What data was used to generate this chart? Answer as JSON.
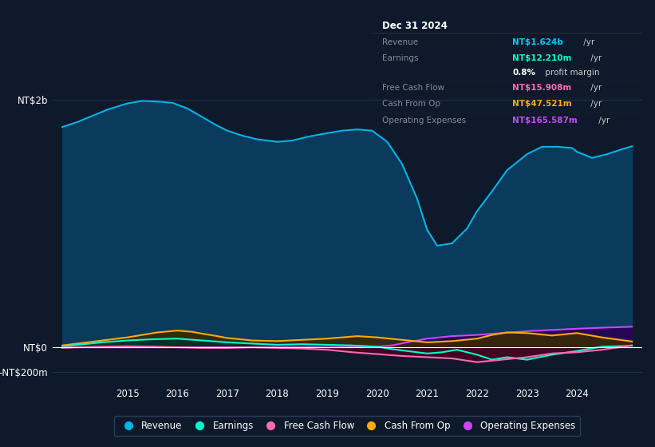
{
  "bg_color": "#0e1a2b",
  "plot_bg_color": "#0e1a2b",
  "grid_color": "#1e3050",
  "title_box": {
    "date": "Dec 31 2024",
    "rows": [
      {
        "label": "Revenue",
        "value": "NT$1.624b",
        "suffix": " /yr",
        "value_color": "#00c8ff",
        "bold": true
      },
      {
        "label": "Earnings",
        "value": "NT$12.210m",
        "suffix": " /yr",
        "value_color": "#00ffcc",
        "bold": true
      },
      {
        "label": "",
        "value": "0.8%",
        "suffix": " profit margin",
        "value_color": "#ffffff",
        "bold": true
      },
      {
        "label": "Free Cash Flow",
        "value": "NT$15.908m",
        "suffix": " /yr",
        "value_color": "#ff69b4",
        "bold": true
      },
      {
        "label": "Cash From Op",
        "value": "NT$47.521m",
        "suffix": " /yr",
        "value_color": "#ffaa00",
        "bold": true
      },
      {
        "label": "Operating Expenses",
        "value": "NT$165.587m",
        "suffix": " /yr",
        "value_color": "#cc44ff",
        "bold": true
      }
    ]
  },
  "ytick_labels": [
    "NT$2b",
    "NT$0",
    "-NT$200m"
  ],
  "ytick_values": [
    2000,
    0,
    -200
  ],
  "ylim": [
    -300,
    2300
  ],
  "xlim": [
    2013.5,
    2025.3
  ],
  "xticks": [
    2015,
    2016,
    2017,
    2018,
    2019,
    2020,
    2021,
    2022,
    2023,
    2024
  ],
  "series": {
    "revenue": {
      "color": "#00b4e6",
      "fill_color": "#0a3a5c",
      "label": "Revenue",
      "x": [
        2013.7,
        2014.0,
        2014.3,
        2014.6,
        2015.0,
        2015.3,
        2015.6,
        2015.9,
        2016.0,
        2016.2,
        2016.5,
        2016.8,
        2017.0,
        2017.3,
        2017.6,
        2018.0,
        2018.3,
        2018.6,
        2019.0,
        2019.3,
        2019.6,
        2019.9,
        2020.0,
        2020.2,
        2020.5,
        2020.8,
        2021.0,
        2021.2,
        2021.5,
        2021.8,
        2022.0,
        2022.3,
        2022.6,
        2023.0,
        2023.3,
        2023.6,
        2023.9,
        2024.0,
        2024.3,
        2024.6,
        2024.9,
        2025.1
      ],
      "y": [
        1780,
        1820,
        1870,
        1920,
        1970,
        1990,
        1985,
        1975,
        1960,
        1930,
        1860,
        1790,
        1750,
        1710,
        1680,
        1660,
        1670,
        1700,
        1730,
        1750,
        1760,
        1750,
        1720,
        1660,
        1480,
        1200,
        950,
        820,
        840,
        960,
        1100,
        1260,
        1430,
        1560,
        1620,
        1620,
        1610,
        1580,
        1530,
        1560,
        1600,
        1624
      ]
    },
    "earnings": {
      "color": "#00ffcc",
      "fill_color": "#00332a",
      "label": "Earnings",
      "x": [
        2013.7,
        2014.0,
        2014.5,
        2015.0,
        2015.5,
        2016.0,
        2016.5,
        2017.0,
        2017.5,
        2018.0,
        2018.5,
        2019.0,
        2019.5,
        2020.0,
        2020.3,
        2020.6,
        2021.0,
        2021.3,
        2021.6,
        2022.0,
        2022.3,
        2022.6,
        2023.0,
        2023.5,
        2024.0,
        2024.5,
        2025.1
      ],
      "y": [
        10,
        20,
        40,
        55,
        65,
        70,
        55,
        40,
        30,
        20,
        25,
        20,
        15,
        5,
        -15,
        -30,
        -50,
        -40,
        -20,
        -60,
        -100,
        -80,
        -100,
        -60,
        -30,
        5,
        12
      ]
    },
    "free_cash_flow": {
      "color": "#ff69b4",
      "fill_color": "#4a0020",
      "label": "Free Cash Flow",
      "x": [
        2013.7,
        2014.0,
        2014.5,
        2015.0,
        2015.5,
        2016.0,
        2016.5,
        2017.0,
        2017.5,
        2018.0,
        2018.5,
        2019.0,
        2019.5,
        2020.0,
        2020.5,
        2021.0,
        2021.5,
        2022.0,
        2022.5,
        2023.0,
        2023.5,
        2024.0,
        2024.5,
        2025.1
      ],
      "y": [
        -5,
        0,
        5,
        8,
        5,
        0,
        -5,
        -5,
        0,
        -5,
        -10,
        -20,
        -40,
        -55,
        -70,
        -80,
        -90,
        -120,
        -100,
        -80,
        -50,
        -40,
        -20,
        16
      ]
    },
    "cash_from_op": {
      "color": "#ffaa00",
      "fill_color": "#3a2a00",
      "label": "Cash From Op",
      "x": [
        2013.7,
        2014.0,
        2014.5,
        2015.0,
        2015.3,
        2015.6,
        2016.0,
        2016.3,
        2016.5,
        2016.8,
        2017.0,
        2017.5,
        2018.0,
        2018.5,
        2019.0,
        2019.3,
        2019.6,
        2020.0,
        2020.5,
        2021.0,
        2021.5,
        2022.0,
        2022.3,
        2022.6,
        2023.0,
        2023.5,
        2024.0,
        2024.5,
        2025.1
      ],
      "y": [
        15,
        30,
        55,
        80,
        100,
        120,
        135,
        125,
        110,
        90,
        75,
        55,
        50,
        60,
        70,
        80,
        90,
        80,
        60,
        40,
        50,
        70,
        100,
        120,
        115,
        95,
        115,
        80,
        47
      ]
    },
    "operating_expenses": {
      "color": "#cc44ff",
      "fill_color": "#2a0055",
      "label": "Operating Expenses",
      "x": [
        2013.7,
        2014.0,
        2014.5,
        2015.0,
        2015.5,
        2016.0,
        2016.5,
        2017.0,
        2017.5,
        2018.0,
        2018.5,
        2019.0,
        2019.5,
        2020.0,
        2020.3,
        2020.6,
        2021.0,
        2021.5,
        2022.0,
        2022.5,
        2023.0,
        2023.5,
        2024.0,
        2024.5,
        2025.1
      ],
      "y": [
        0,
        0,
        0,
        0,
        0,
        0,
        0,
        0,
        0,
        0,
        0,
        0,
        0,
        5,
        15,
        40,
        70,
        90,
        100,
        115,
        130,
        140,
        150,
        158,
        166
      ]
    }
  },
  "legend_items": [
    {
      "label": "Revenue",
      "color": "#00b4e6"
    },
    {
      "label": "Earnings",
      "color": "#00ffcc"
    },
    {
      "label": "Free Cash Flow",
      "color": "#ff69b4"
    },
    {
      "label": "Cash From Op",
      "color": "#ffaa00"
    },
    {
      "label": "Operating Expenses",
      "color": "#cc44ff"
    }
  ]
}
